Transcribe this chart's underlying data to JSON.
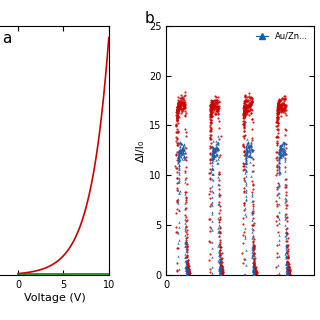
{
  "left_plot": {
    "xlabel": "Voltage (V)",
    "xlim": [
      -2,
      10
    ],
    "xticks": [
      0,
      5,
      10
    ],
    "light_color": "#cc0000",
    "dark_color": "#008800",
    "label_a": "a"
  },
  "right_plot": {
    "ylabel": "ΔI/I₀",
    "ylim": [
      0,
      25
    ],
    "yticks": [
      0,
      5,
      10,
      15,
      20,
      25
    ],
    "xticks": [
      0
    ],
    "red_color": "#cc0000",
    "blue_color": "#1a5aaa",
    "label_b": "b",
    "legend": "Au/Zn...",
    "n_cycles": 4,
    "peak_red": 17.0,
    "peak_blue": 12.5
  }
}
